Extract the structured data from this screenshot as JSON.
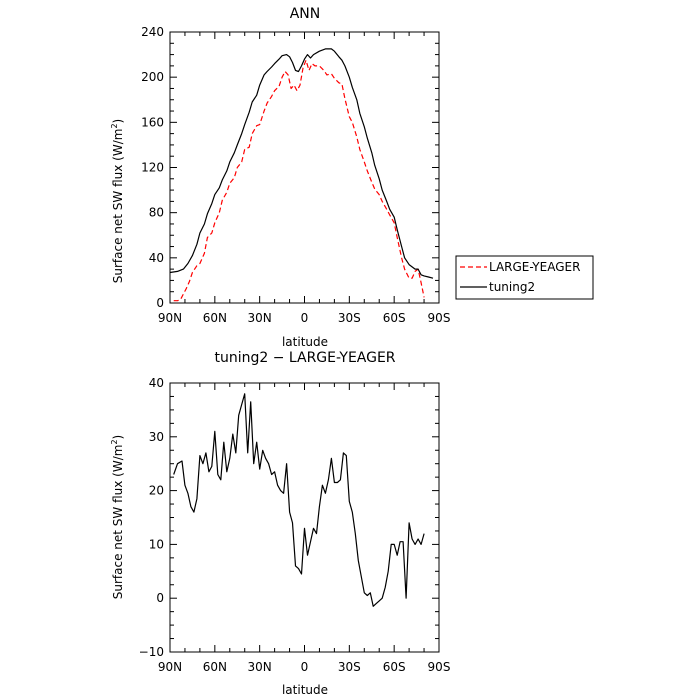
{
  "chart_data": [
    {
      "type": "line",
      "title": "ANN",
      "xlabel": "latitude",
      "ylabel": "Surface net SW flux (W/m",
      "ylabel_sup": "2",
      "ylabel_end": ")",
      "xlim": [
        90,
        -90
      ],
      "ylim": [
        0,
        240
      ],
      "xticks": [
        90,
        60,
        30,
        0,
        -30,
        -60,
        -90
      ],
      "xtick_labels": [
        "90N",
        "60N",
        "30N",
        "0",
        "30S",
        "60S",
        "90S"
      ],
      "yticks": [
        0,
        40,
        80,
        120,
        160,
        200,
        240
      ],
      "ytick_labels": [
        "0",
        "40",
        "80",
        "120",
        "160",
        "200",
        "240"
      ],
      "legend_position": "right",
      "series": [
        {
          "name": "LARGE-YEAGER",
          "color": "#ff0000",
          "dash": "dashed",
          "x": [
            87.5,
            85,
            83,
            81,
            79,
            77,
            75,
            72,
            70,
            67,
            65,
            62,
            60,
            57,
            55,
            52,
            50,
            47,
            45,
            42,
            40,
            37,
            35,
            32,
            30,
            27,
            25,
            22,
            20,
            17,
            15,
            13,
            11,
            9,
            7,
            5,
            3,
            1,
            -1,
            -3,
            -5,
            -7,
            -10,
            -13,
            -15,
            -18,
            -20,
            -23,
            -25,
            -27,
            -30,
            -32,
            -35,
            -37,
            -40,
            -42,
            -45,
            -47,
            -50,
            -52,
            -55,
            -57,
            -60,
            -62,
            -65,
            -67,
            -70,
            -72,
            -74,
            -76,
            -78,
            -80
          ],
          "y": [
            2,
            2,
            3,
            8,
            13,
            19,
            27,
            33,
            35,
            44,
            58,
            62,
            71,
            80,
            91,
            98,
            106,
            111,
            120,
            125,
            136,
            138,
            150,
            157,
            158,
            170,
            177,
            183,
            188,
            192,
            200,
            205,
            202,
            190,
            193,
            188,
            193,
            208,
            215,
            206,
            212,
            210,
            210,
            206,
            202,
            203,
            199,
            195,
            194,
            181,
            165,
            160,
            147,
            136,
            125,
            117,
            107,
            101,
            96,
            90,
            83,
            78,
            71,
            58,
            40,
            30,
            22,
            22,
            28,
            30,
            18,
            5
          ]
        },
        {
          "name": "tuning2",
          "color": "#000000",
          "dash": "solid",
          "x": [
            90,
            85,
            81,
            78,
            75,
            72,
            70,
            67,
            65,
            62,
            60,
            57,
            55,
            52,
            50,
            47,
            45,
            42,
            40,
            37,
            35,
            32,
            30,
            27,
            25,
            22,
            20,
            17,
            15,
            12,
            10,
            8,
            6,
            4,
            2,
            0,
            -2,
            -4,
            -6,
            -10,
            -14,
            -18,
            -20,
            -23,
            -25,
            -27,
            -30,
            -32,
            -35,
            -37,
            -40,
            -42,
            -45,
            -47,
            -50,
            -52,
            -55,
            -57,
            -60,
            -62,
            -65,
            -67,
            -70,
            -72,
            -74,
            -76,
            -78,
            -80,
            -83,
            -86
          ],
          "y": [
            27,
            28,
            30,
            35,
            42,
            52,
            62,
            70,
            79,
            88,
            96,
            102,
            109,
            117,
            125,
            133,
            140,
            150,
            158,
            169,
            178,
            184,
            193,
            202,
            205,
            209,
            212,
            216,
            219,
            220,
            218,
            213,
            206,
            205,
            210,
            216,
            220,
            217,
            220,
            223,
            225,
            225,
            223,
            218,
            215,
            210,
            200,
            191,
            180,
            168,
            156,
            146,
            133,
            122,
            110,
            100,
            90,
            83,
            76,
            65,
            50,
            40,
            34,
            32,
            30,
            30,
            25,
            24,
            23,
            22
          ]
        }
      ]
    },
    {
      "type": "line",
      "title": "tuning2 − LARGE-YEAGER",
      "xlabel": "latitude",
      "ylabel": "Surface net SW flux (W/m",
      "ylabel_sup": "2",
      "ylabel_end": ")",
      "xlim": [
        90,
        -90
      ],
      "ylim": [
        -10,
        40
      ],
      "xticks": [
        90,
        60,
        30,
        0,
        -30,
        -60,
        -90
      ],
      "xtick_labels": [
        "90N",
        "60N",
        "30N",
        "0",
        "30S",
        "60S",
        "90S"
      ],
      "yticks": [
        -10,
        0,
        10,
        20,
        30,
        40
      ],
      "ytick_labels": [
        "−10",
        "0",
        "10",
        "20",
        "30",
        "40"
      ],
      "series": [
        {
          "name": "tuning2 − LARGE-YEAGER",
          "color": "#000000",
          "dash": "solid",
          "x": [
            87.5,
            85,
            82,
            80,
            78,
            76,
            74,
            72,
            70,
            68,
            66,
            64,
            62,
            60,
            58,
            56,
            54,
            52,
            50,
            48,
            46,
            44,
            42,
            40,
            38,
            36,
            34,
            32,
            30,
            28,
            26,
            24,
            22,
            20,
            18,
            16,
            14,
            12,
            10,
            8,
            6,
            4,
            2,
            0,
            -2,
            -4,
            -6,
            -8,
            -10,
            -12,
            -14,
            -16,
            -18,
            -20,
            -22,
            -24,
            -26,
            -28,
            -30,
            -32,
            -34,
            -36,
            -38,
            -40,
            -42,
            -44,
            -46,
            -48,
            -50,
            -52,
            -54,
            -56,
            -58,
            -60,
            -62,
            -64,
            -66,
            -68,
            -70,
            -72,
            -74,
            -76,
            -78,
            -80
          ],
          "y": [
            23,
            25,
            25.5,
            21,
            19.5,
            17,
            16,
            18.5,
            26.5,
            25,
            27,
            23.5,
            24.5,
            31,
            23,
            22,
            29,
            23.5,
            26,
            30.5,
            27,
            34,
            36,
            38,
            27,
            36.5,
            25,
            29,
            24,
            27.5,
            26,
            25,
            23,
            23.5,
            21,
            20,
            19.5,
            25,
            16,
            14,
            6,
            5.5,
            4.5,
            13,
            8,
            10.5,
            13,
            12,
            17,
            21,
            19.5,
            22,
            26,
            21.5,
            21.5,
            22,
            27,
            26.5,
            18,
            16,
            12,
            7,
            4,
            1,
            0.5,
            1,
            -1.5,
            -1,
            -0.5,
            0,
            2,
            5,
            10,
            10,
            8,
            10.5,
            10.5,
            0,
            14,
            11,
            10,
            11,
            10,
            12
          ]
        }
      ]
    }
  ]
}
